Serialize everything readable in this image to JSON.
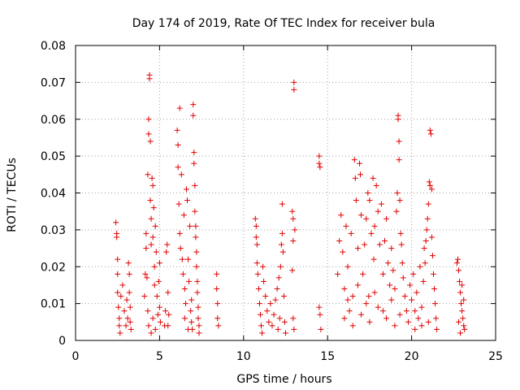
{
  "chart_data": {
    "type": "scatter",
    "title": "Day 174 of 2019, Rate Of TEC Index for receiver bula",
    "xlabel": "GPS time / hours",
    "ylabel": "ROTI / TECUs",
    "xlim": [
      0,
      25
    ],
    "ylim": [
      0,
      0.08
    ],
    "xticks": [
      0,
      5,
      10,
      15,
      20,
      25
    ],
    "xtick_labels": [
      "0",
      "5",
      "10",
      "15",
      "20",
      "25"
    ],
    "yticks": [
      0,
      0.01,
      0.02,
      0.03,
      0.04,
      0.05,
      0.06,
      0.07,
      0.08
    ],
    "ytick_labels": [
      "0",
      "0.01",
      "0.02",
      "0.03",
      "0.04",
      "0.05",
      "0.06",
      "0.07",
      "0.08"
    ],
    "grid": true,
    "marker": "+",
    "marker_color": "#e00000",
    "series": [
      {
        "name": "ROTI",
        "points": [
          [
            2.4,
            0.032
          ],
          [
            2.45,
            0.029
          ],
          [
            2.45,
            0.028
          ],
          [
            2.5,
            0.022
          ],
          [
            2.5,
            0.018
          ],
          [
            2.5,
            0.013
          ],
          [
            2.55,
            0.009
          ],
          [
            2.6,
            0.006
          ],
          [
            2.6,
            0.004
          ],
          [
            2.65,
            0.002
          ],
          [
            2.7,
            0.012
          ],
          [
            2.8,
            0.015
          ],
          [
            2.9,
            0.008
          ],
          [
            3.0,
            0.004
          ],
          [
            3.05,
            0.011
          ],
          [
            3.1,
            0.006
          ],
          [
            3.15,
            0.021
          ],
          [
            3.2,
            0.018
          ],
          [
            3.2,
            0.013
          ],
          [
            3.25,
            0.009
          ],
          [
            3.25,
            0.005
          ],
          [
            3.3,
            0.003
          ],
          [
            4.1,
            0.012
          ],
          [
            4.15,
            0.018
          ],
          [
            4.2,
            0.025
          ],
          [
            4.2,
            0.029
          ],
          [
            4.25,
            0.017
          ],
          [
            4.3,
            0.045
          ],
          [
            4.35,
            0.056
          ],
          [
            4.35,
            0.06
          ],
          [
            4.4,
            0.071
          ],
          [
            4.4,
            0.072
          ],
          [
            4.45,
            0.054
          ],
          [
            4.45,
            0.038
          ],
          [
            4.5,
            0.033
          ],
          [
            4.5,
            0.026
          ],
          [
            4.55,
            0.044
          ],
          [
            4.6,
            0.042
          ],
          [
            4.6,
            0.028
          ],
          [
            4.65,
            0.036
          ],
          [
            4.7,
            0.02
          ],
          [
            4.7,
            0.015
          ],
          [
            4.75,
            0.031
          ],
          [
            4.8,
            0.024
          ],
          [
            4.85,
            0.012
          ],
          [
            4.9,
            0.007
          ],
          [
            4.95,
            0.016
          ],
          [
            5.0,
            0.021
          ],
          [
            5.0,
            0.009
          ],
          [
            5.05,
            0.005
          ],
          [
            4.3,
            0.008
          ],
          [
            4.35,
            0.004
          ],
          [
            4.5,
            0.002
          ],
          [
            4.6,
            0.006
          ],
          [
            4.75,
            0.003
          ],
          [
            5.3,
            0.004
          ],
          [
            5.35,
            0.008
          ],
          [
            5.4,
            0.024
          ],
          [
            5.45,
            0.026
          ],
          [
            5.5,
            0.013
          ],
          [
            5.5,
            0.004
          ],
          [
            5.55,
            0.007
          ],
          [
            6.05,
            0.057
          ],
          [
            6.1,
            0.053
          ],
          [
            6.1,
            0.047
          ],
          [
            6.15,
            0.037
          ],
          [
            6.2,
            0.063
          ],
          [
            6.2,
            0.029
          ],
          [
            6.25,
            0.025
          ],
          [
            6.3,
            0.045
          ],
          [
            6.35,
            0.022
          ],
          [
            6.4,
            0.018
          ],
          [
            6.45,
            0.034
          ],
          [
            6.5,
            0.014
          ],
          [
            6.55,
            0.01
          ],
          [
            6.6,
            0.041
          ],
          [
            6.65,
            0.038
          ],
          [
            6.7,
            0.022
          ],
          [
            6.75,
            0.016
          ],
          [
            6.8,
            0.031
          ],
          [
            6.85,
            0.008
          ],
          [
            6.9,
            0.005
          ],
          [
            6.95,
            0.003
          ],
          [
            7.0,
            0.064
          ],
          [
            7.0,
            0.061
          ],
          [
            7.05,
            0.051
          ],
          [
            7.05,
            0.048
          ],
          [
            7.1,
            0.042
          ],
          [
            7.1,
            0.035
          ],
          [
            7.15,
            0.031
          ],
          [
            7.15,
            0.028
          ],
          [
            7.2,
            0.024
          ],
          [
            7.2,
            0.02
          ],
          [
            7.25,
            0.016
          ],
          [
            7.25,
            0.013
          ],
          [
            7.3,
            0.009
          ],
          [
            7.3,
            0.006
          ],
          [
            7.35,
            0.004
          ],
          [
            7.35,
            0.002
          ],
          [
            6.5,
            0.006
          ],
          [
            6.7,
            0.003
          ],
          [
            6.9,
            0.011
          ],
          [
            8.4,
            0.018
          ],
          [
            8.4,
            0.014
          ],
          [
            8.45,
            0.01
          ],
          [
            8.45,
            0.006
          ],
          [
            8.5,
            0.004
          ],
          [
            10.7,
            0.033
          ],
          [
            10.75,
            0.031
          ],
          [
            10.75,
            0.028
          ],
          [
            10.8,
            0.026
          ],
          [
            10.8,
            0.021
          ],
          [
            10.85,
            0.018
          ],
          [
            10.9,
            0.014
          ],
          [
            10.95,
            0.01
          ],
          [
            11.0,
            0.007
          ],
          [
            11.05,
            0.004
          ],
          [
            11.1,
            0.002
          ],
          [
            11.15,
            0.02
          ],
          [
            11.2,
            0.016
          ],
          [
            11.3,
            0.012
          ],
          [
            11.4,
            0.008
          ],
          [
            11.5,
            0.005
          ],
          [
            11.6,
            0.01
          ],
          [
            11.7,
            0.004
          ],
          [
            11.8,
            0.007
          ],
          [
            11.9,
            0.011
          ],
          [
            12.0,
            0.014
          ],
          [
            12.05,
            0.003
          ],
          [
            12.1,
            0.017
          ],
          [
            12.15,
            0.006
          ],
          [
            12.2,
            0.02
          ],
          [
            12.25,
            0.026
          ],
          [
            12.3,
            0.029
          ],
          [
            12.3,
            0.037
          ],
          [
            12.35,
            0.024
          ],
          [
            12.4,
            0.012
          ],
          [
            12.45,
            0.005
          ],
          [
            12.5,
            0.002
          ],
          [
            12.9,
            0.035
          ],
          [
            12.95,
            0.033
          ],
          [
            12.95,
            0.027
          ],
          [
            13.0,
            0.07
          ],
          [
            13.0,
            0.068
          ],
          [
            13.05,
            0.03
          ],
          [
            12.9,
            0.019
          ],
          [
            12.95,
            0.006
          ],
          [
            13.0,
            0.003
          ],
          [
            14.5,
            0.05
          ],
          [
            14.5,
            0.048
          ],
          [
            14.55,
            0.047
          ],
          [
            14.5,
            0.009
          ],
          [
            14.55,
            0.007
          ],
          [
            14.6,
            0.003
          ],
          [
            15.6,
            0.018
          ],
          [
            15.7,
            0.027
          ],
          [
            15.8,
            0.034
          ],
          [
            15.9,
            0.024
          ],
          [
            16.0,
            0.014
          ],
          [
            16.1,
            0.031
          ],
          [
            16.2,
            0.02
          ],
          [
            16.3,
            0.008
          ],
          [
            16.4,
            0.029
          ],
          [
            16.5,
            0.012
          ],
          [
            16.6,
            0.049
          ],
          [
            16.65,
            0.044
          ],
          [
            16.7,
            0.038
          ],
          [
            16.8,
            0.025
          ],
          [
            16.9,
            0.048
          ],
          [
            16.95,
            0.045
          ],
          [
            17.0,
            0.034
          ],
          [
            17.1,
            0.018
          ],
          [
            17.2,
            0.026
          ],
          [
            17.3,
            0.033
          ],
          [
            17.4,
            0.04
          ],
          [
            17.45,
            0.012
          ],
          [
            17.5,
            0.038
          ],
          [
            17.6,
            0.029
          ],
          [
            17.7,
            0.044
          ],
          [
            17.75,
            0.022
          ],
          [
            17.8,
            0.031
          ],
          [
            17.9,
            0.042
          ],
          [
            18.0,
            0.035
          ],
          [
            18.1,
            0.026
          ],
          [
            18.2,
            0.037
          ],
          [
            18.3,
            0.018
          ],
          [
            18.4,
            0.027
          ],
          [
            18.5,
            0.033
          ],
          [
            18.6,
            0.021
          ],
          [
            18.7,
            0.015
          ],
          [
            18.8,
            0.025
          ],
          [
            18.9,
            0.019
          ],
          [
            19.0,
            0.014
          ],
          [
            19.1,
            0.035
          ],
          [
            19.15,
            0.04
          ],
          [
            19.2,
            0.06
          ],
          [
            19.2,
            0.061
          ],
          [
            19.25,
            0.054
          ],
          [
            19.25,
            0.049
          ],
          [
            19.3,
            0.038
          ],
          [
            19.35,
            0.029
          ],
          [
            19.4,
            0.026
          ],
          [
            19.45,
            0.021
          ],
          [
            19.5,
            0.017
          ],
          [
            19.6,
            0.012
          ],
          [
            19.7,
            0.008
          ],
          [
            19.8,
            0.005
          ],
          [
            16.0,
            0.006
          ],
          [
            16.5,
            0.004
          ],
          [
            17.0,
            0.007
          ],
          [
            17.5,
            0.005
          ],
          [
            18.0,
            0.009
          ],
          [
            18.5,
            0.006
          ],
          [
            19.0,
            0.004
          ],
          [
            16.2,
            0.011
          ],
          [
            16.8,
            0.015
          ],
          [
            17.3,
            0.01
          ],
          [
            17.8,
            0.013
          ],
          [
            18.3,
            0.008
          ],
          [
            18.8,
            0.011
          ],
          [
            19.3,
            0.007
          ],
          [
            19.9,
            0.015
          ],
          [
            20.0,
            0.011
          ],
          [
            20.1,
            0.018
          ],
          [
            20.2,
            0.008
          ],
          [
            20.3,
            0.013
          ],
          [
            20.4,
            0.006
          ],
          [
            20.5,
            0.02
          ],
          [
            20.6,
            0.009
          ],
          [
            20.7,
            0.016
          ],
          [
            20.75,
            0.025
          ],
          [
            20.8,
            0.021
          ],
          [
            20.85,
            0.027
          ],
          [
            20.9,
            0.03
          ],
          [
            20.95,
            0.033
          ],
          [
            21.0,
            0.037
          ],
          [
            21.05,
            0.043
          ],
          [
            21.1,
            0.042
          ],
          [
            21.1,
            0.057
          ],
          [
            21.15,
            0.056
          ],
          [
            21.2,
            0.041
          ],
          [
            21.2,
            0.028
          ],
          [
            21.25,
            0.023
          ],
          [
            21.3,
            0.018
          ],
          [
            21.35,
            0.014
          ],
          [
            21.4,
            0.01
          ],
          [
            21.45,
            0.006
          ],
          [
            21.5,
            0.003
          ],
          [
            20.2,
            0.003
          ],
          [
            20.6,
            0.004
          ],
          [
            21.0,
            0.005
          ],
          [
            22.7,
            0.021
          ],
          [
            22.75,
            0.022
          ],
          [
            22.8,
            0.019
          ],
          [
            22.85,
            0.016
          ],
          [
            22.9,
            0.013
          ],
          [
            22.95,
            0.01
          ],
          [
            23.0,
            0.008
          ],
          [
            23.05,
            0.006
          ],
          [
            23.1,
            0.004
          ],
          [
            23.15,
            0.003
          ],
          [
            22.8,
            0.005
          ],
          [
            22.9,
            0.002
          ],
          [
            23.0,
            0.015
          ],
          [
            23.1,
            0.011
          ]
        ]
      }
    ]
  }
}
